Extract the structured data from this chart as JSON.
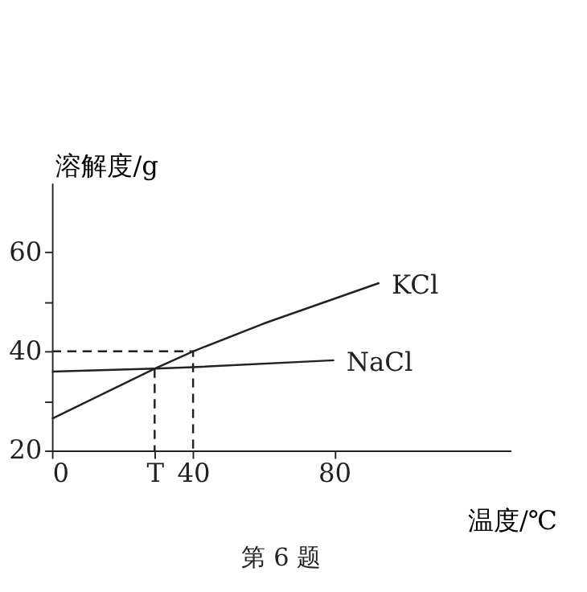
{
  "chart_data": {
    "type": "line",
    "xlabel": "温度/℃",
    "ylabel": "溶解度/g",
    "annotations": [
      "第 6 题"
    ],
    "xlim": [
      0,
      130
    ],
    "ylim": [
      20,
      74
    ],
    "xticks": [
      0,
      {
        "value": 29.1,
        "label": "T"
      },
      40,
      80
    ],
    "yticks": [
      20,
      {
        "value": 30,
        "label": null
      },
      40,
      {
        "value": 50,
        "label": null
      },
      60
    ],
    "grid": false,
    "marker": "none",
    "series": [
      {
        "name": "KCl",
        "color": "#222222",
        "line_style": "solid",
        "x": [
          0,
          29.1,
          40,
          60,
          92.8
        ],
        "values": [
          26.4,
          36.5,
          40,
          45.6,
          53.8
        ]
      },
      {
        "name": "NaCl",
        "color": "#222222",
        "line_style": "solid",
        "x": [
          0,
          29.1,
          40,
          80
        ],
        "values": [
          35.9,
          36.5,
          36.8,
          38.2
        ]
      },
      {
        "color": "#222222",
        "line_style": "dashed",
        "x": [
          0,
          40,
          40
        ],
        "values": [
          40,
          40,
          20
        ]
      },
      {
        "color": "#222222",
        "line_style": "dashed",
        "x": [
          29.1,
          29.1
        ],
        "values": [
          36.5,
          20
        ]
      }
    ]
  }
}
